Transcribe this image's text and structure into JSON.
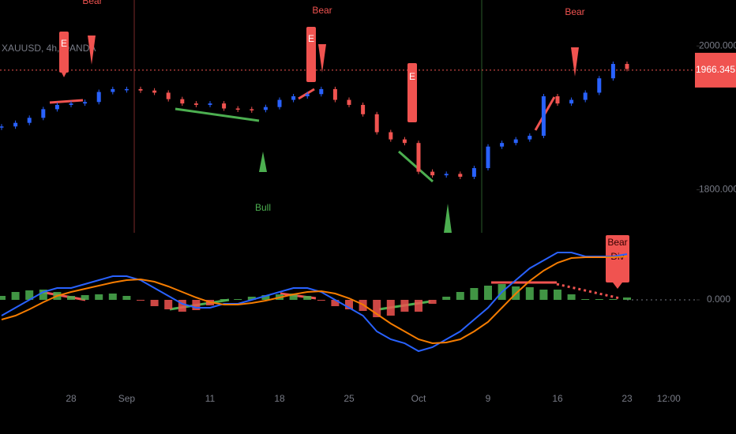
{
  "symbol": "XAUUSD, 4h, OANDA",
  "annotations": {
    "bear": [
      "Bear",
      "Bear",
      "Bear"
    ],
    "bull": [
      "Bull"
    ],
    "entry": [
      "E",
      "E",
      "E"
    ],
    "bear_div": [
      "Bear",
      "Div"
    ]
  },
  "chart_data": [
    {
      "type": "candlestick",
      "categories": [
        null,
        null,
        null,
        null,
        null,
        "28",
        null,
        null,
        null,
        "Sep",
        null,
        null,
        null,
        null,
        null,
        "11",
        null,
        null,
        null,
        null,
        "18",
        null,
        null,
        null,
        null,
        "25",
        null,
        null,
        null,
        null,
        "Oct",
        null,
        null,
        null,
        null,
        "9",
        null,
        null,
        null,
        null,
        "16",
        null,
        null,
        null,
        null,
        "23",
        null,
        null,
        "12:00"
      ],
      "values": [
        1888,
        1893,
        1900,
        1912,
        1918,
        1920,
        1922,
        1936,
        1940,
        1940,
        1938,
        1935,
        1926,
        1920,
        1918,
        1920,
        1913,
        1912,
        1911,
        1915,
        1925,
        1930,
        1933,
        1940,
        1925,
        1918,
        1905,
        1880,
        1870,
        1865,
        1825,
        1820,
        1822,
        1818,
        1830,
        1860,
        1865,
        1870,
        1875,
        1930,
        1920,
        1925,
        1935,
        1955,
        1975,
        1968,
        null,
        null,
        null
      ],
      "up_color": "#2962ff",
      "down_color": "#f05350",
      "ylim": [
        1740,
        2064
      ],
      "yticks": [
        {
          "value": 2000,
          "label": "2000.000"
        },
        {
          "value": 1800,
          "label": "1800.000"
        }
      ],
      "current_price": 1966.345
    },
    {
      "type": "macd",
      "series": [
        {
          "color": "#2962ff",
          "values": [
            -2,
            -1,
            0,
            1,
            1.5,
            1.5,
            2,
            2.5,
            3,
            3,
            2.5,
            1.5,
            0.5,
            -0.5,
            -1,
            -1,
            -0.5,
            -0.5,
            0,
            0.5,
            1,
            1.5,
            1.5,
            1,
            0,
            -1,
            -2,
            -4,
            -5,
            -5.5,
            -6.5,
            -6,
            -5,
            -4,
            -2.5,
            -1,
            1,
            2.5,
            4,
            5,
            6,
            6,
            5.5,
            5.5,
            5.5,
            5.8,
            null,
            null,
            null
          ]
        },
        {
          "color": "#f57c00",
          "values": [
            -2.5,
            -2,
            -1.2,
            -0.3,
            0.5,
            1,
            1.4,
            1.8,
            2.2,
            2.5,
            2.6,
            2.3,
            1.7,
            1,
            0.3,
            -0.3,
            -0.6,
            -0.6,
            -0.4,
            -0.1,
            0.3,
            0.7,
            1,
            1.1,
            0.8,
            0.2,
            -0.6,
            -1.8,
            -3,
            -4,
            -5,
            -5.5,
            -5.4,
            -5,
            -4,
            -2.8,
            -1,
            0.8,
            2.4,
            3.7,
            4.7,
            5.3,
            5.4,
            5.4,
            5.4,
            5.5,
            null,
            null,
            null
          ]
        }
      ],
      "histogram": [
        0.5,
        1,
        1.2,
        1.3,
        1,
        0.5,
        0.6,
        0.7,
        0.8,
        0.5,
        -0.1,
        -0.8,
        -1.2,
        -1.5,
        -1.3,
        -0.7,
        0.1,
        0.1,
        0.4,
        0.6,
        0.7,
        0.8,
        0.5,
        -0.1,
        -0.8,
        -1.2,
        -1.4,
        -2.2,
        -2,
        -1.5,
        -1.5,
        -0.5,
        0.4,
        1,
        1.5,
        1.8,
        2,
        1.7,
        1.6,
        1.3,
        1.3,
        0.7,
        0.1,
        0.1,
        0.1,
        0.3,
        null,
        null,
        null
      ],
      "up_color": "#4caf50",
      "down_color": "#f05350",
      "ylim": [
        -8,
        8
      ],
      "yticks": [
        {
          "value": 0,
          "label": "0.000"
        }
      ]
    }
  ]
}
